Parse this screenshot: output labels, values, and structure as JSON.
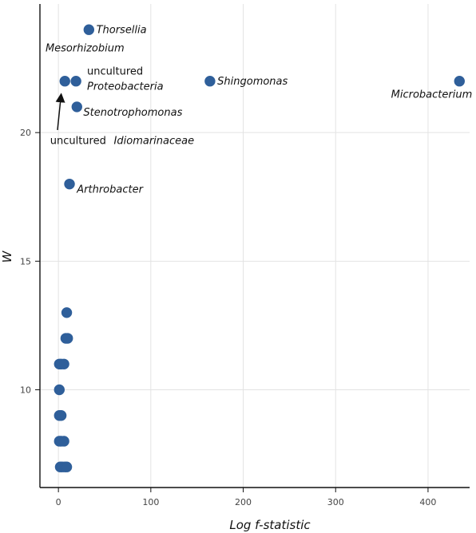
{
  "chart_data": {
    "type": "scatter",
    "title": "",
    "xlabel": "Log f-statistic",
    "ylabel": "W",
    "xlim": [
      -20,
      445
    ],
    "ylim": [
      6.2,
      25
    ],
    "grid": true,
    "colors": {
      "point": "#2f5f9a",
      "grid": "#e3e3e3",
      "axis": "#111111",
      "arrow": "#111111"
    },
    "x_ticks": [
      0,
      100,
      200,
      300,
      400
    ],
    "y_ticks": [
      10,
      15,
      20
    ],
    "points": [
      {
        "x": 33,
        "y": 24
      },
      {
        "x": 7,
        "y": 22
      },
      {
        "x": 19,
        "y": 22
      },
      {
        "x": 164,
        "y": 22
      },
      {
        "x": 434,
        "y": 22
      },
      {
        "x": 20,
        "y": 21
      },
      {
        "x": 12,
        "y": 18
      },
      {
        "x": 9,
        "y": 13
      },
      {
        "x": 8,
        "y": 12
      },
      {
        "x": 10,
        "y": 12
      },
      {
        "x": 1,
        "y": 11
      },
      {
        "x": 3,
        "y": 11
      },
      {
        "x": 6,
        "y": 11
      },
      {
        "x": 1,
        "y": 10
      },
      {
        "x": 1,
        "y": 9
      },
      {
        "x": 3,
        "y": 9
      },
      {
        "x": 1,
        "y": 8
      },
      {
        "x": 3,
        "y": 8
      },
      {
        "x": 6,
        "y": 8
      },
      {
        "x": 2,
        "y": 7
      },
      {
        "x": 4,
        "y": 7
      },
      {
        "x": 7,
        "y": 7
      },
      {
        "x": 9,
        "y": 7
      }
    ],
    "annotations": [
      {
        "id": "thorsellia",
        "text": "Thorsellia",
        "x": 41,
        "y": 24,
        "italic": true,
        "anchor": "start"
      },
      {
        "id": "mesorhizobium",
        "text": "Mesorhizobium",
        "x": -14,
        "y": 23.3,
        "italic": true,
        "anchor": "start"
      },
      {
        "id": "uncultured-1",
        "text": "uncultured",
        "x": 31,
        "y": 22.4,
        "italic": false,
        "anchor": "start"
      },
      {
        "id": "proteobacteria",
        "text": "Proteobacteria",
        "x": 31,
        "y": 21.8,
        "italic": true,
        "anchor": "start"
      },
      {
        "id": "shingomonas",
        "text": "Shingomonas",
        "x": 172,
        "y": 22,
        "italic": true,
        "anchor": "start"
      },
      {
        "id": "microbacterium",
        "text": "Microbacterium",
        "x": 360,
        "y": 21.5,
        "italic": true,
        "anchor": "start"
      },
      {
        "id": "stenotrophomonas",
        "text": "Stenotrophomonas",
        "x": 27,
        "y": 20.8,
        "italic": true,
        "anchor": "start"
      },
      {
        "id": "uncultured-2",
        "text": "uncultured",
        "x": -9,
        "y": 19.7,
        "italic": false,
        "anchor": "start"
      },
      {
        "id": "idiomarinaceae",
        "text": "Idiomarinaceae",
        "x": 60,
        "y": 19.7,
        "italic": true,
        "anchor": "start"
      },
      {
        "id": "arthrobacter",
        "text": "Arthrobacter",
        "x": 20,
        "y": 17.8,
        "italic": true,
        "anchor": "start"
      }
    ],
    "arrow": {
      "from": [
        -1,
        20.1
      ],
      "to": [
        3,
        21.5
      ]
    }
  }
}
